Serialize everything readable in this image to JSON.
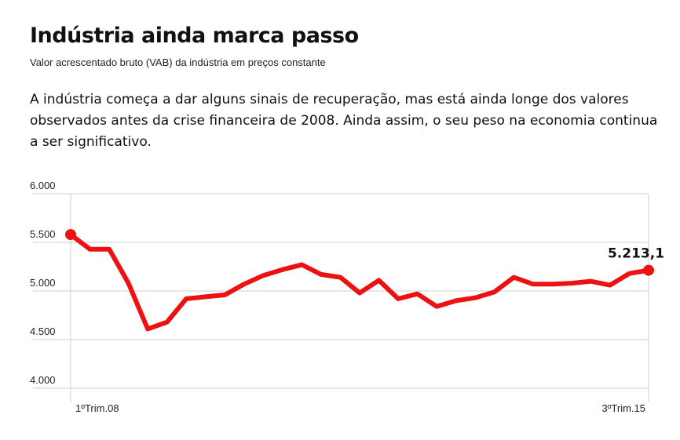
{
  "header": {
    "title": "Indústria ainda marca passo",
    "subtitle": "Valor acrescentado bruto (VAB) da indústria em preços constante",
    "lead": "A indústria começa a dar alguns sinais de recuperação, mas está ainda longe dos valores observados antes da crise financeira de 2008. Ainda assim, o seu peso na economia continua a ser significativo."
  },
  "chart_data": {
    "type": "line",
    "title": "Indústria ainda marca passo",
    "subtitle": "Valor acrescentado bruto (VAB) da indústria em preços constante",
    "xlabel": "",
    "ylabel": "",
    "x_tick_labels": [
      "1ºTrim.08",
      "3ºTrim.15"
    ],
    "y_tick_labels": [
      "6.000",
      "5.500",
      "5.000",
      "4.500",
      "4.000"
    ],
    "y_ticks": [
      6000,
      5500,
      5000,
      4500,
      4000
    ],
    "ylim": [
      4000,
      6000
    ],
    "grid": true,
    "line_color": "#ee1111",
    "end_label": "5.213,1",
    "series": [
      {
        "values": [
          5580,
          5430,
          5430,
          5080,
          4610,
          4680,
          4920,
          4940,
          4960,
          5070,
          5160,
          5220,
          5270,
          5170,
          5140,
          4980,
          5110,
          4920,
          4970,
          4840,
          4900,
          4930,
          4990,
          5140,
          5070,
          5070,
          5080,
          5100,
          5060,
          5180,
          5213.1
        ]
      }
    ]
  }
}
